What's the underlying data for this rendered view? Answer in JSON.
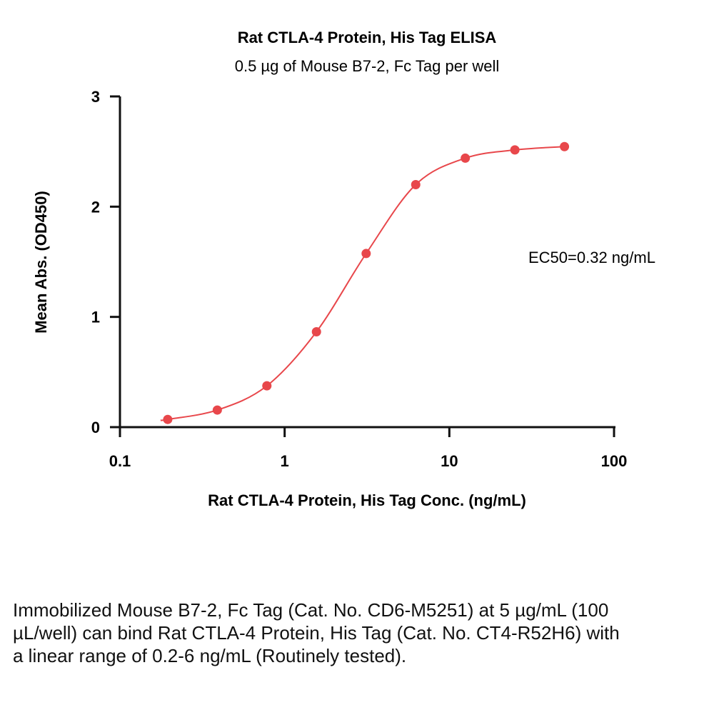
{
  "chart_data": {
    "type": "scatter",
    "title": "Rat CTLA-4 Protein, His Tag ELISA",
    "subtitle": "0.5 µg of Mouse B7-2, Fc Tag per well",
    "xlabel": "Rat CTLA-4 Protein, His Tag Conc. (ng/mL)",
    "ylabel": "Mean Abs. (OD450)",
    "xscale": "log",
    "xlim": [
      0.1,
      100
    ],
    "ylim": [
      0,
      3
    ],
    "xticks": [
      "0.1",
      "1",
      "10",
      "100"
    ],
    "yticks": [
      "0",
      "1",
      "2",
      "3"
    ],
    "grid": false,
    "series": [
      {
        "color": "#e8474b",
        "fit": "4PL",
        "x": [
          0.195,
          0.39,
          0.78,
          1.56,
          3.125,
          6.25,
          12.5,
          25,
          50
        ],
        "y": [
          0.07,
          0.155,
          0.375,
          0.865,
          1.575,
          2.2,
          2.44,
          2.515,
          2.545
        ]
      }
    ],
    "annotation": "EC50=0.32 ng/mL"
  },
  "caption": "Immobilized Mouse B7-2, Fc Tag (Cat. No. CD6-M5251) at 5 µg/mL (100 µL/well) can bind Rat CTLA-4 Protein, His Tag (Cat. No. CT4-R52H6) with a linear range of 0.2-6 ng/mL (Routinely tested)."
}
